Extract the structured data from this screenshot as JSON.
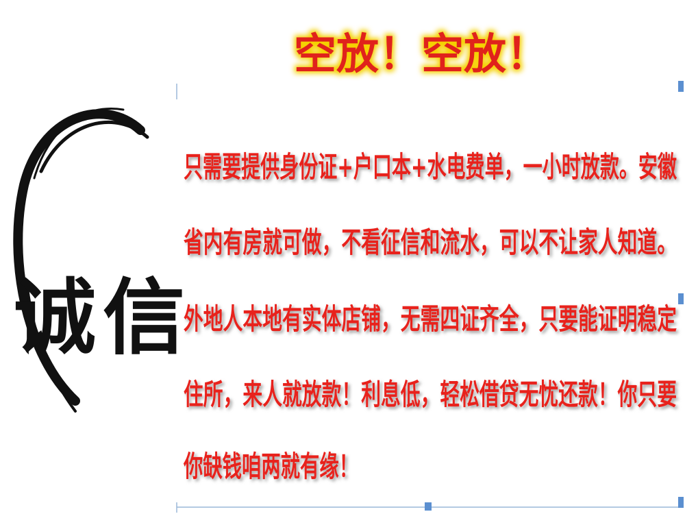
{
  "title": "空放！空放！",
  "logo": {
    "chars": [
      "诚",
      "信"
    ]
  },
  "body": {
    "lines": [
      "只需要提供身份证+户口本+水电费单，一小时放款。安徽",
      "省内有房就可做，不看征信和流水，可以不让家人知道。",
      "外地人本地有实体店铺，无需四证齐全，只要能证明稳定",
      "住所，来人就放款！利息低，轻松借贷无忧还款！你只要",
      "你缺钱咱两就有缘！"
    ]
  }
}
